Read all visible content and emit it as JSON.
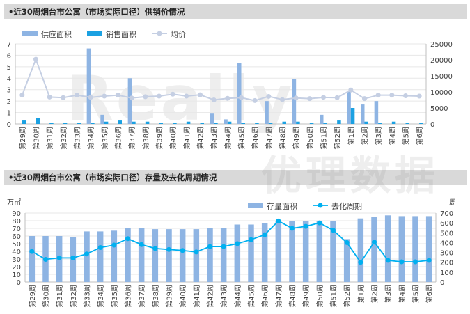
{
  "colors": {
    "bar_primary": "#8eb4e3",
    "bar_secondary": "#1ba1e2",
    "line_a": "#c5cfe3",
    "line_b": "#00b0f0",
    "axis": "#bfbfbf",
    "text": "#404040"
  },
  "watermark": {
    "latin": "Really",
    "cjk": "优理数据"
  },
  "chart_data": [
    {
      "type": "bar",
      "title": "•近30周烟台市公寓（市场实际口径）供销价情况",
      "categories": [
        "第29周",
        "第30周",
        "第31周",
        "第32周",
        "第33周",
        "第34周",
        "第35周",
        "第36周",
        "第37周",
        "第38周",
        "第39周",
        "第40周",
        "第41周",
        "第42周",
        "第43周",
        "第44周",
        "第45周",
        "第46周",
        "第47周",
        "第48周",
        "第49周",
        "第50周",
        "第51周",
        "第52周",
        "第1周",
        "第2周",
        "第3周",
        "第4周",
        "第5周",
        "第6周"
      ],
      "series": [
        {
          "name": "供应面积",
          "kind": "bar",
          "axis": "left",
          "values": [
            0,
            0,
            0,
            0,
            0,
            6.6,
            0.8,
            0,
            4,
            0,
            0,
            0,
            0,
            0,
            0.9,
            0.4,
            5.3,
            0,
            2,
            0,
            3.9,
            0,
            0.8,
            0,
            2.9,
            1.7,
            2,
            0,
            0,
            0
          ]
        },
        {
          "name": "销售面积",
          "kind": "bar",
          "axis": "left",
          "values": [
            0.3,
            0.5,
            0.1,
            0.1,
            0.1,
            0.1,
            0.2,
            0.3,
            0.2,
            0.2,
            0.1,
            0.1,
            0.2,
            0.1,
            0.1,
            0.2,
            0.1,
            0.1,
            0.1,
            0.2,
            0.2,
            0.1,
            0.1,
            0.3,
            1.4,
            0.2,
            0.1,
            0.2,
            0.1,
            0.1
          ]
        },
        {
          "name": "均价",
          "kind": "line",
          "axis": "right",
          "values": [
            9000,
            20200,
            8400,
            8200,
            9000,
            8300,
            8700,
            9000,
            8100,
            8500,
            8700,
            9300,
            8700,
            9100,
            7500,
            8000,
            8200,
            7300,
            8600,
            7600,
            8100,
            7900,
            8300,
            8200,
            10600,
            7900,
            9000,
            9000,
            8800,
            8700
          ]
        }
      ],
      "yleft": {
        "ticks": [
          "0",
          "1",
          "2",
          "3",
          "4",
          "5",
          "6",
          "7"
        ],
        "min": 0,
        "max": 7
      },
      "yright": {
        "ticks": [
          "0",
          "5000",
          "10000",
          "15000",
          "20000",
          "25000"
        ],
        "min": 0,
        "max": 25000
      },
      "legend": "top-center"
    },
    {
      "type": "bar",
      "title": "•近30周烟台市公寓（市场实际口径）存量及去化周期情况",
      "ylabel_left": "万㎡",
      "ylabel_right": "周",
      "categories": [
        "第29周",
        "第30周",
        "第31周",
        "第32周",
        "第33周",
        "第34周",
        "第35周",
        "第36周",
        "第37周",
        "第38周",
        "第39周",
        "第40周",
        "第41周",
        "第42周",
        "第43周",
        "第44周",
        "第45周",
        "第46周",
        "第47周",
        "第48周",
        "第49周",
        "第50周",
        "第51周",
        "第52周",
        "第1周",
        "第2周",
        "第3周",
        "第4周",
        "第5周",
        "第6周"
      ],
      "series": [
        {
          "name": "存量面积",
          "kind": "bar",
          "axis": "left",
          "values": [
            60,
            60,
            60,
            59,
            66,
            66,
            67,
            70,
            70,
            69,
            69,
            69,
            69,
            70,
            70,
            75,
            75,
            77,
            80,
            80,
            80,
            80,
            80,
            56,
            83,
            85,
            87,
            86,
            86,
            86
          ]
        },
        {
          "name": "去化周期",
          "kind": "line",
          "axis": "right",
          "values": [
            310,
            230,
            245,
            245,
            285,
            350,
            375,
            440,
            380,
            340,
            330,
            320,
            305,
            360,
            360,
            390,
            430,
            480,
            620,
            545,
            565,
            600,
            525,
            400,
            200,
            405,
            220,
            205,
            205,
            220
          ]
        }
      ],
      "yleft": {
        "ticks": [
          "0",
          "10",
          "20",
          "30",
          "40",
          "50",
          "60",
          "70",
          "80",
          "90"
        ],
        "min": 0,
        "max": 90
      },
      "yright": {
        "ticks": [
          "0",
          "100",
          "200",
          "300",
          "400",
          "500",
          "600",
          "700"
        ],
        "min": 0,
        "max": 700
      },
      "legend": "top-right"
    }
  ]
}
